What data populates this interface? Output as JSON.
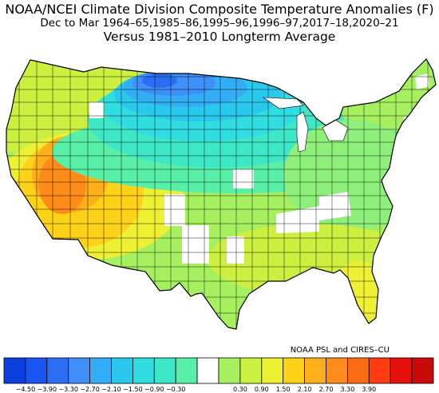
{
  "title": {
    "line1": "NOAA/NCEI Climate Division Composite Temperature Anomalies (F)",
    "line2": "Dec to Mar  1964–65,1985–86,1995–96,1996–97,2017–18,2020–21",
    "line3": "Versus 1981–2010 Longterm Average"
  },
  "credit": "NOAA PSL and CIRES–CU",
  "map": {
    "region": "Contiguous United States climate divisions",
    "pattern": "Cold anomalies over the northern Plains / upper Midwest, warm anomalies over the Southwest and Great Basin, near-normal over the South and East"
  },
  "colorbar": {
    "unit": "F",
    "bins": [
      {
        "color": "#0a3fe0"
      },
      {
        "color": "#1955f0"
      },
      {
        "color": "#2b6ef5"
      },
      {
        "color": "#3f8ff8"
      },
      {
        "color": "#33aef5"
      },
      {
        "color": "#2bc8ee"
      },
      {
        "color": "#30dde0"
      },
      {
        "color": "#3ee8c6"
      },
      {
        "color": "#58f0a8"
      },
      {
        "color": "#ffffff"
      },
      {
        "color": "#a6f060"
      },
      {
        "color": "#cdf040"
      },
      {
        "color": "#eef033"
      },
      {
        "color": "#ffd21a"
      },
      {
        "color": "#ffb01a"
      },
      {
        "color": "#ff8c1a"
      },
      {
        "color": "#ff6a14"
      },
      {
        "color": "#ff3c10"
      },
      {
        "color": "#e61010"
      },
      {
        "color": "#c80a0a"
      }
    ],
    "tick_labels": [
      "−4.50",
      "−3.90",
      "−3.30",
      "−2.70",
      "−2.10",
      "−1.50",
      "−0.90",
      "−0.30",
      "0.30",
      "0.90",
      "1.50",
      "2.10",
      "2.70",
      "3.30",
      "3.90"
    ]
  }
}
